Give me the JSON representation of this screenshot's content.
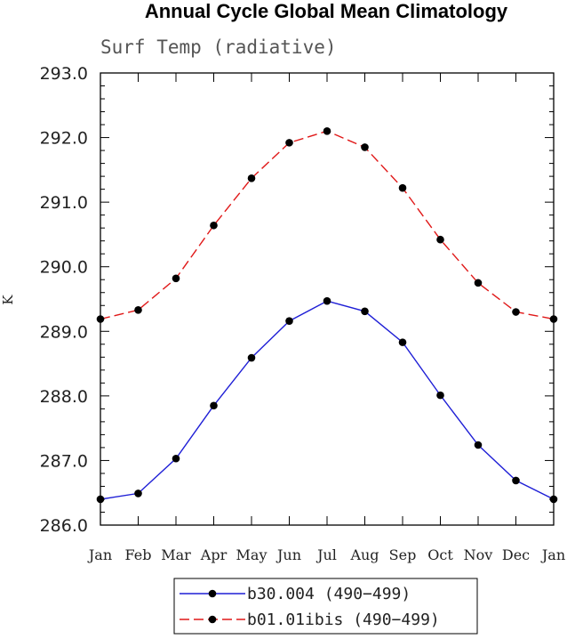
{
  "chart_data": {
    "type": "line",
    "title": "Annual Cycle Global Mean Climatology",
    "subtitle": "Surf Temp (radiative)",
    "xlabel": "",
    "ylabel": "K",
    "categories": [
      "Jan",
      "Feb",
      "Mar",
      "Apr",
      "May",
      "Jun",
      "Jul",
      "Aug",
      "Sep",
      "Oct",
      "Nov",
      "Dec",
      "Jan"
    ],
    "ylim": [
      286.0,
      293.0
    ],
    "yticks": [
      "286.0",
      "287.0",
      "288.0",
      "289.0",
      "290.0",
      "291.0",
      "292.0",
      "293.0"
    ],
    "grid": false,
    "legend_position": "bottom-center",
    "series": [
      {
        "name": "b30.004 (490−499)",
        "color": "#1f1fd6",
        "style": "solid",
        "values": [
          286.4,
          286.49,
          287.03,
          287.85,
          288.59,
          289.16,
          289.47,
          289.31,
          288.83,
          288.01,
          287.24,
          286.69,
          286.4
        ]
      },
      {
        "name": "b01.01ibis (490−499)",
        "color": "#e01818",
        "style": "dashed",
        "values": [
          289.19,
          289.33,
          289.82,
          290.64,
          291.37,
          291.92,
          292.1,
          291.85,
          291.22,
          290.42,
          289.75,
          289.3,
          289.19
        ]
      }
    ]
  }
}
